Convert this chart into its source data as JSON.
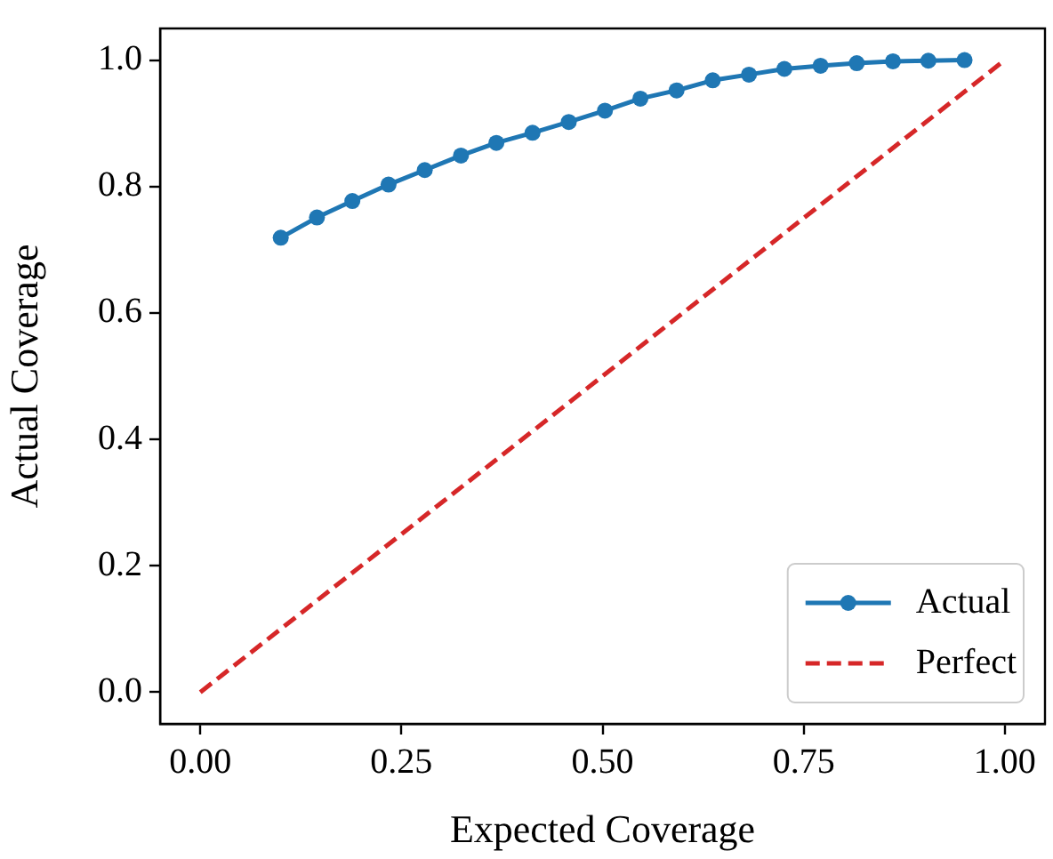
{
  "chart_data": {
    "type": "line",
    "xlabel": "Expected Coverage",
    "ylabel": "Actual Coverage",
    "xlim": [
      -0.05,
      1.05
    ],
    "ylim": [
      -0.05,
      1.05
    ],
    "xticks": [
      {
        "value": 0,
        "label": "0.00"
      },
      {
        "value": 0.25,
        "label": "0.25"
      },
      {
        "value": 0.5,
        "label": "0.50"
      },
      {
        "value": 0.75,
        "label": "0.75"
      },
      {
        "value": 1,
        "label": "1.00"
      }
    ],
    "yticks": [
      {
        "value": 0,
        "label": "0.0"
      },
      {
        "value": 0.2,
        "label": "0.2"
      },
      {
        "value": 0.4,
        "label": "0.4"
      },
      {
        "value": 0.6,
        "label": "0.6"
      },
      {
        "value": 0.8,
        "label": "0.8"
      },
      {
        "value": 1,
        "label": "1.0"
      }
    ],
    "grid": false,
    "legend": "bottom right",
    "series": [
      {
        "name": "Actual",
        "color": "#1f77b4",
        "marker": "circle",
        "line_style": "solid",
        "x": [
          0.1,
          0.145,
          0.189,
          0.234,
          0.279,
          0.324,
          0.368,
          0.413,
          0.458,
          0.503,
          0.547,
          0.592,
          0.637,
          0.682,
          0.726,
          0.771,
          0.816,
          0.861,
          0.905,
          0.95
        ],
        "values": [
          0.719,
          0.751,
          0.777,
          0.803,
          0.826,
          0.849,
          0.869,
          0.885,
          0.902,
          0.92,
          0.939,
          0.952,
          0.968,
          0.977,
          0.986,
          0.991,
          0.995,
          0.998,
          0.999,
          1.0
        ]
      },
      {
        "name": "Perfect",
        "color": "#d62728",
        "marker": "none",
        "line_style": "dashed",
        "x": [
          0,
          1
        ],
        "values": [
          0,
          1
        ]
      }
    ]
  }
}
